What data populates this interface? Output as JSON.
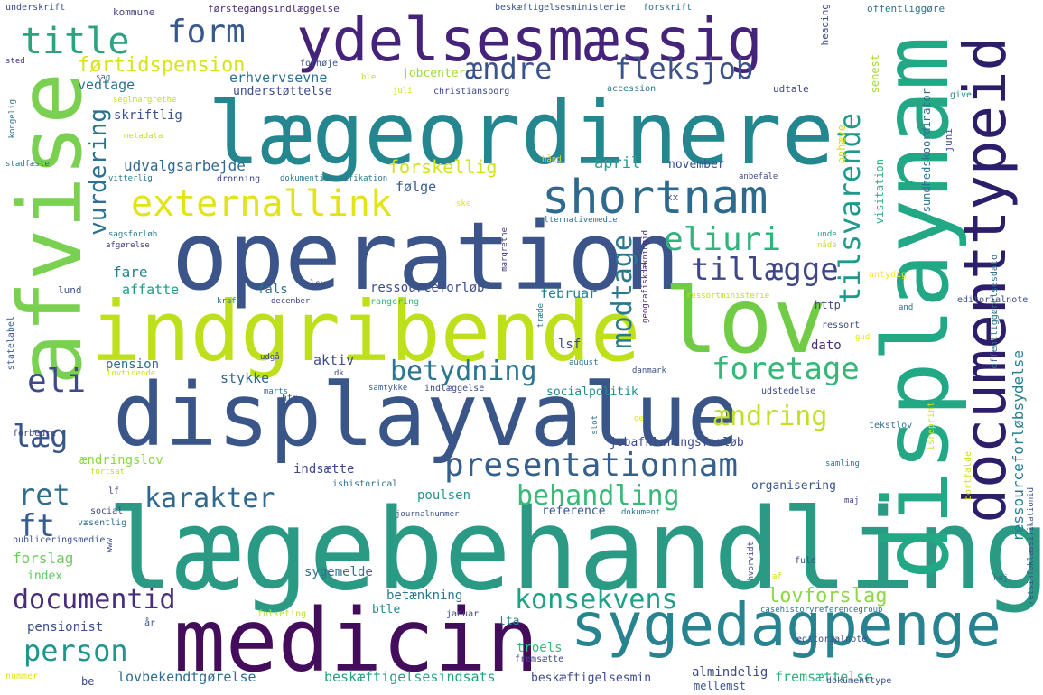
{
  "words": [
    {
      "text": "lægebehandling",
      "color": "#2a9a85"
    },
    {
      "text": "displayvalue",
      "color": "#3a5689"
    },
    {
      "text": "operation",
      "color": "#3b5489"
    },
    {
      "text": "indgribende",
      "color": "#bde01a"
    },
    {
      "text": "lægeordinere",
      "color": "#24868e"
    },
    {
      "text": "ydelsesmæssig",
      "color": "#46237a"
    },
    {
      "text": "medicin",
      "color": "#430d5c"
    },
    {
      "text": "lov",
      "color": "#71cc45"
    },
    {
      "text": "sygedagpenge",
      "color": "#26838f"
    },
    {
      "text": "displaynam",
      "color": "#22a885"
    },
    {
      "text": "afvise",
      "color": "#7ad151"
    },
    {
      "text": "documenttypeid",
      "color": "#2d1e6a"
    },
    {
      "text": "shortnam",
      "color": "#2e6a8e"
    },
    {
      "text": "externallink",
      "color": "#e2e418"
    },
    {
      "text": "presentationnam",
      "color": "#355f8d"
    },
    {
      "text": "title",
      "color": "#2da27f"
    },
    {
      "text": "form",
      "color": "#38598c"
    },
    {
      "text": "ændre",
      "color": "#3a538b"
    },
    {
      "text": "fleksjob",
      "color": "#3b528b"
    },
    {
      "text": "førtidspension",
      "color": "#d8e219"
    },
    {
      "text": "tilsvarende",
      "color": "#1f9a8a"
    },
    {
      "text": "eliuri",
      "color": "#2fb47c"
    },
    {
      "text": "tillægge",
      "color": "#3f4788"
    },
    {
      "text": "vurdering",
      "color": "#2c728e"
    },
    {
      "text": "modtage",
      "color": "#2a788e"
    },
    {
      "text": "foretage",
      "color": "#35b779"
    },
    {
      "text": "betydning",
      "color": "#2b758e"
    },
    {
      "text": "eli",
      "color": "#3e4989"
    },
    {
      "text": "ændring",
      "color": "#c2df23"
    },
    {
      "text": "læg",
      "color": "#39568c"
    },
    {
      "text": "karakter",
      "color": "#31688e"
    },
    {
      "text": "behandling",
      "color": "#38b977"
    },
    {
      "text": "ret",
      "color": "#2e6e8e"
    },
    {
      "text": "ft",
      "color": "#365d8d"
    },
    {
      "text": "documentid",
      "color": "#472d7b"
    },
    {
      "text": "konsekvens",
      "color": "#1fa088"
    },
    {
      "text": "person",
      "color": "#1f968b"
    },
    {
      "text": "lovforslag",
      "color": "#8fd744"
    },
    {
      "text": "ressourceforløbsydelse",
      "color": "#277f8e"
    },
    {
      "text": "forskellig",
      "color": "#d2e21b"
    },
    {
      "text": "udvalgsarbejde",
      "color": "#31688e"
    },
    {
      "text": "erhvervsevne",
      "color": "#2e6f8e"
    },
    {
      "text": "vedtage",
      "color": "#2b738e"
    },
    {
      "text": "skriftlig",
      "color": "#3b528b"
    },
    {
      "text": "understøttelse",
      "color": "#3e4c8a"
    },
    {
      "text": "jobcenter",
      "color": "#a0da39"
    },
    {
      "text": "april",
      "color": "#2a9d8f"
    },
    {
      "text": "november",
      "color": "#3c4f8a"
    },
    {
      "text": "følge",
      "color": "#355e8d"
    },
    {
      "text": "fare",
      "color": "#277f8e"
    },
    {
      "text": "affatte",
      "color": "#1e9c89"
    },
    {
      "text": "ressourceforløb",
      "color": "#3d4e8a"
    },
    {
      "text": "februar",
      "color": "#287c8e"
    },
    {
      "text": "fals",
      "color": "#2c718e"
    },
    {
      "text": "aktiv",
      "color": "#3d4d8a"
    },
    {
      "text": "pension",
      "color": "#2c728e"
    },
    {
      "text": "stykke",
      "color": "#30698e"
    },
    {
      "text": "socialpolitik",
      "color": "#228d8d"
    },
    {
      "text": "indsætte",
      "color": "#3f4889"
    },
    {
      "text": "poulsen",
      "color": "#1f958b"
    },
    {
      "text": "organisering",
      "color": "#39568c"
    },
    {
      "text": "reference",
      "color": "#3a548c"
    },
    {
      "text": "jobafklaringsforløb",
      "color": "#3e4a89"
    },
    {
      "text": "betænkning",
      "color": "#2a788e"
    },
    {
      "text": "sygemelde",
      "color": "#2d708e"
    },
    {
      "text": "pensionist",
      "color": "#3c4f8a"
    },
    {
      "text": "lovbekendtgørelse",
      "color": "#2f6c8e"
    },
    {
      "text": "beskæftigelsesindsats",
      "color": "#20a386"
    },
    {
      "text": "beskæftigelsesmin",
      "color": "#3e4989"
    },
    {
      "text": "fremsættelse",
      "color": "#2db27d"
    },
    {
      "text": "almindelig",
      "color": "#3e4a89"
    },
    {
      "text": "mellemst",
      "color": "#3a548c"
    },
    {
      "text": "ændringslov",
      "color": "#8bd646"
    },
    {
      "text": "forslag",
      "color": "#6ccd5a"
    },
    {
      "text": "index",
      "color": "#5ec962"
    },
    {
      "text": "troels",
      "color": "#37b878"
    },
    {
      "text": "lta",
      "color": "#26818e"
    },
    {
      "text": "btle",
      "color": "#25858e"
    },
    {
      "text": "dato",
      "color": "#472f7d"
    },
    {
      "text": "http",
      "color": "#3f4788"
    },
    {
      "text": "lsf",
      "color": "#404688"
    },
    {
      "text": "opstille",
      "color": "#1f9e89"
    },
    {
      "text": "underskrift",
      "color": "#3e4c8a"
    },
    {
      "text": "kommune",
      "color": "#433e85"
    },
    {
      "text": "førstegangsindlæggelse",
      "color": "#482979"
    },
    {
      "text": "beskæftigelsesministerie",
      "color": "#3a548c"
    },
    {
      "text": "forskrift",
      "color": "#2f6c8e"
    },
    {
      "text": "heading",
      "color": "#3f4889"
    },
    {
      "text": "offentliggøre",
      "color": "#2c718e"
    },
    {
      "text": "sted",
      "color": "#46327e"
    },
    {
      "text": "forhøje",
      "color": "#3b518b"
    },
    {
      "text": "sag",
      "color": "#2d708e"
    },
    {
      "text": "ble",
      "color": "#bddf26"
    },
    {
      "text": "juli",
      "color": "#d2e21b"
    },
    {
      "text": "christiansborg",
      "color": "#3e4c8a"
    },
    {
      "text": "accession",
      "color": "#2a778e"
    },
    {
      "text": "udtale",
      "color": "#3e4989"
    },
    {
      "text": "senest",
      "color": "#a5db36"
    },
    {
      "text": "give",
      "color": "#23898e"
    },
    {
      "text": "seglmargrethe",
      "color": "#bddf26"
    },
    {
      "text": "metadata",
      "color": "#c2df23"
    },
    {
      "text": "dronning",
      "color": "#3f4788"
    },
    {
      "text": "dokumentidentifikation",
      "color": "#2a768e"
    },
    {
      "text": "vitterlig",
      "color": "#2a788e"
    },
    {
      "text": "hånd",
      "color": "#cde11d"
    },
    {
      "text": "anbefale",
      "color": "#3e4a89"
    },
    {
      "text": "visitation",
      "color": "#2db27d"
    },
    {
      "text": "ophæve",
      "color": "#d2e21b"
    },
    {
      "text": "sundhedskoordinator",
      "color": "#2c718e"
    },
    {
      "text": "juni",
      "color": "#3e4989"
    },
    {
      "text": "stadfæste",
      "color": "#2c728e"
    },
    {
      "text": "kongelig",
      "color": "#2d708e"
    },
    {
      "text": "xx",
      "color": "#3b528b"
    },
    {
      "text": "ske",
      "color": "#e5e419"
    },
    {
      "text": "margrethe",
      "color": "#46337f"
    },
    {
      "text": "alternativemedie",
      "color": "#2d708e"
    },
    {
      "text": "sagsforløb",
      "color": "#287d8e"
    },
    {
      "text": "afgørelse",
      "color": "#433e85"
    },
    {
      "text": "geografiskdækningid",
      "color": "#482576"
    },
    {
      "text": "unde",
      "color": "#1e9b8a"
    },
    {
      "text": "nåde",
      "color": "#cae11f"
    },
    {
      "text": "antydig",
      "color": "#fde725"
    },
    {
      "text": "lund",
      "color": "#3b528b"
    },
    {
      "text": "lsv",
      "color": "#3e4989"
    },
    {
      "text": "kraft",
      "color": "#2d708e"
    },
    {
      "text": "december",
      "color": "#404588"
    },
    {
      "text": "rangering",
      "color": "#37b878"
    },
    {
      "text": "ressortministerie",
      "color": "#bddf26"
    },
    {
      "text": "offentliggørelsesdato",
      "color": "#2d708e"
    },
    {
      "text": "editorialnote",
      "color": "#3b528b"
    },
    {
      "text": "statelabel",
      "color": "#38598c"
    },
    {
      "text": "træde",
      "color": "#2a788e"
    },
    {
      "text": "ressort",
      "color": "#3e4989"
    },
    {
      "text": "gud",
      "color": "#e5e419"
    },
    {
      "text": "and",
      "color": "#2d708e"
    },
    {
      "text": "udgå",
      "color": "#3f4889"
    },
    {
      "text": "lovtidende",
      "color": "#cde11d"
    },
    {
      "text": "htm",
      "color": "#3d4d8a"
    },
    {
      "text": "dk",
      "color": "#3f4889"
    },
    {
      "text": "marts",
      "color": "#2a788e"
    },
    {
      "text": "samtykke",
      "color": "#38598c"
    },
    {
      "text": "indlæggelse",
      "color": "#3e4c8a"
    },
    {
      "text": "august",
      "color": "#2d708e"
    },
    {
      "text": "danmark",
      "color": "#3b518b"
    },
    {
      "text": "udstedelse",
      "color": "#3e4989"
    },
    {
      "text": "isreprint",
      "color": "#cde11d"
    },
    {
      "text": "slot",
      "color": "#2a768e"
    },
    {
      "text": "ge",
      "color": "#e5e419"
    },
    {
      "text": "tekstlov",
      "color": "#2d708e"
    },
    {
      "text": "forbedre",
      "color": "#3f4788"
    },
    {
      "text": "fortsat",
      "color": "#bddf26"
    },
    {
      "text": "lf",
      "color": "#3e4989"
    },
    {
      "text": "ishistorical",
      "color": "#2d708e"
    },
    {
      "text": "samling",
      "color": "#2a788e"
    },
    {
      "text": "bortfalde",
      "color": "#d2e21b"
    },
    {
      "text": "retsinfoklassifikationid",
      "color": "#3e4c8a"
    },
    {
      "text": "social",
      "color": "#3e4989"
    },
    {
      "text": "væsentlig",
      "color": "#2d708e"
    },
    {
      "text": "journalnummer",
      "color": "#3b528b"
    },
    {
      "text": "dokument",
      "color": "#2d708e"
    },
    {
      "text": "maj",
      "color": "#3e4989"
    },
    {
      "text": "publiceringsmedie",
      "color": "#3b528b"
    },
    {
      "text": "www",
      "color": "#3e4989"
    },
    {
      "text": "hvorvidt",
      "color": "#3f4788"
    },
    {
      "text": "fuld",
      "color": "#3e4c8a"
    },
    {
      "text": "af",
      "color": "#d2e21b"
    },
    {
      "text": "høj",
      "color": "#2d708e"
    },
    {
      "text": "folketing",
      "color": "#bddf26"
    },
    {
      "text": "januar",
      "color": "#3e4989"
    },
    {
      "text": "casehistoryreferencegroup",
      "color": "#2d708e"
    },
    {
      "text": "år",
      "color": "#3b528b"
    },
    {
      "text": "fremsætte",
      "color": "#3e4989"
    },
    {
      "text": "nummer",
      "color": "#e5e419"
    },
    {
      "text": "be",
      "color": "#3e4989"
    },
    {
      "text": "dokumenttype",
      "color": "#3b528b"
    },
    {
      "text": "editorialnote",
      "color": "#3e4c8a"
    }
  ]
}
